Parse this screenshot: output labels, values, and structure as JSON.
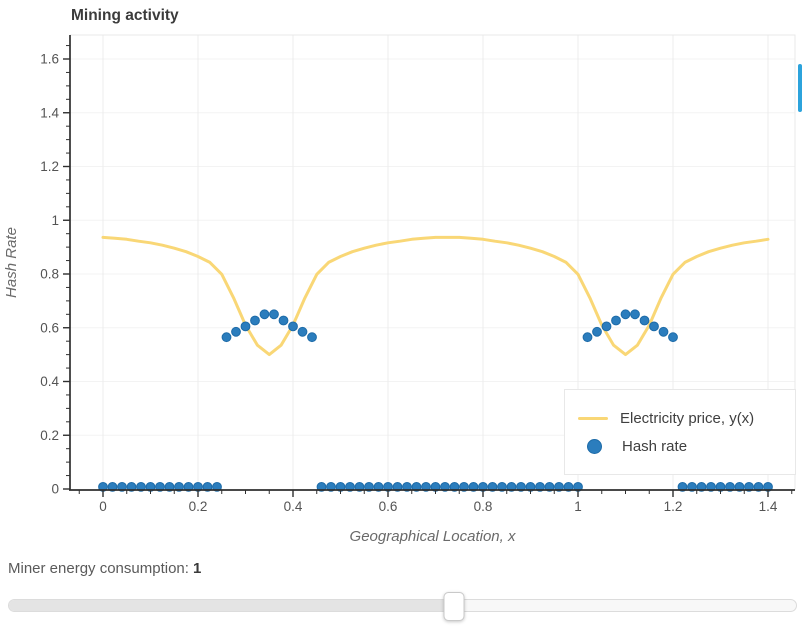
{
  "page": {
    "title": "Mining activity"
  },
  "chart_data": {
    "type": "line",
    "title": "Mining activity",
    "xlabel": "Geographical Location, x",
    "ylabel": "Hash Rate",
    "xlim": [
      -0.07,
      1.46
    ],
    "ylim": [
      0,
      1.69
    ],
    "grid": true,
    "legend_position": "bottom-right",
    "x_ticks": [
      0,
      0.2,
      0.4,
      0.6,
      0.8,
      1,
      1.2,
      1.4
    ],
    "x_tick_labels": [
      "0",
      "0.2",
      "0.4",
      "0.6",
      "0.8",
      "1",
      "1.2",
      "1.4"
    ],
    "y_ticks": [
      0,
      0.2,
      0.4,
      0.6,
      0.8,
      1,
      1.2,
      1.4,
      1.6
    ],
    "y_tick_labels": [
      "0",
      "0.2",
      "0.4",
      "0.6",
      "0.8",
      "1",
      "1.2",
      "1.4",
      "1.6"
    ],
    "minor_tick_step": 0.05,
    "series": [
      {
        "name": "Electricity price, y(x)",
        "kind": "line",
        "x": [
          0,
          0.025,
          0.05,
          0.075,
          0.1,
          0.125,
          0.15,
          0.175,
          0.2,
          0.225,
          0.25,
          0.275,
          0.3,
          0.325,
          0.35,
          0.375,
          0.4,
          0.425,
          0.45,
          0.475,
          0.5,
          0.525,
          0.55,
          0.575,
          0.6,
          0.625,
          0.65,
          0.675,
          0.7,
          0.725,
          0.75,
          0.775,
          0.8,
          0.825,
          0.85,
          0.875,
          0.9,
          0.925,
          0.95,
          0.975,
          1,
          1.025,
          1.05,
          1.075,
          1.1,
          1.125,
          1.15,
          1.175,
          1.2,
          1.225,
          1.25,
          1.275,
          1.3,
          1.325,
          1.35,
          1.375,
          1.4
        ],
        "y": [
          0.936,
          0.933,
          0.929,
          0.922,
          0.916,
          0.907,
          0.896,
          0.883,
          0.865,
          0.843,
          0.799,
          0.711,
          0.61,
          0.535,
          0.5,
          0.535,
          0.61,
          0.711,
          0.799,
          0.843,
          0.865,
          0.883,
          0.896,
          0.907,
          0.916,
          0.922,
          0.929,
          0.933,
          0.936,
          0.936,
          0.936,
          0.933,
          0.929,
          0.922,
          0.916,
          0.907,
          0.896,
          0.883,
          0.865,
          0.843,
          0.799,
          0.711,
          0.61,
          0.535,
          0.5,
          0.535,
          0.61,
          0.711,
          0.799,
          0.843,
          0.865,
          0.883,
          0.896,
          0.907,
          0.916,
          0.922,
          0.929
        ]
      },
      {
        "name": "Hash rate",
        "kind": "scatter",
        "x": [
          0,
          0.02,
          0.04,
          0.06,
          0.08,
          0.1,
          0.12,
          0.14,
          0.16,
          0.18,
          0.2,
          0.22,
          0.24,
          0.26,
          0.28,
          0.3,
          0.32,
          0.34,
          0.36,
          0.38,
          0.4,
          0.42,
          0.44,
          0.46,
          0.48,
          0.5,
          0.52,
          0.54,
          0.56,
          0.58,
          0.6,
          0.62,
          0.64,
          0.66,
          0.68,
          0.7,
          0.72,
          0.74,
          0.76,
          0.78,
          0.8,
          0.82,
          0.84,
          0.86,
          0.88,
          0.9,
          0.92,
          0.94,
          0.96,
          0.98,
          1,
          1.02,
          1.04,
          1.06,
          1.08,
          1.1,
          1.12,
          1.14,
          1.16,
          1.18,
          1.2,
          1.22,
          1.24,
          1.26,
          1.28,
          1.3,
          1.32,
          1.34,
          1.36,
          1.38,
          1.4
        ],
        "y": [
          0.008,
          0.008,
          0.008,
          0.008,
          0.008,
          0.008,
          0.008,
          0.008,
          0.008,
          0.008,
          0.008,
          0.008,
          0.008,
          0.565,
          0.585,
          0.605,
          0.627,
          0.65,
          0.65,
          0.627,
          0.605,
          0.585,
          0.565,
          0.008,
          0.008,
          0.008,
          0.008,
          0.008,
          0.008,
          0.008,
          0.008,
          0.008,
          0.008,
          0.008,
          0.008,
          0.008,
          0.008,
          0.008,
          0.008,
          0.008,
          0.008,
          0.008,
          0.008,
          0.008,
          0.008,
          0.008,
          0.008,
          0.008,
          0.008,
          0.008,
          0.008,
          0.565,
          0.585,
          0.605,
          0.627,
          0.65,
          0.65,
          0.627,
          0.605,
          0.585,
          0.565,
          0.008,
          0.008,
          0.008,
          0.008,
          0.008,
          0.008,
          0.008,
          0.008,
          0.008,
          0.008
        ]
      }
    ]
  },
  "legend": {
    "items": [
      {
        "label": "Electricity price, y(x)",
        "marker": "line"
      },
      {
        "label": "Hash rate",
        "marker": "dot"
      }
    ]
  },
  "slider": {
    "label": "Miner energy consumption:",
    "value": "1",
    "fraction": 0.566
  },
  "colors": {
    "line": "#F9D776",
    "marker": "#2B7DBD",
    "marker_edge": "#1D6BA8",
    "axis": "#2F2F2F",
    "tick_label": "#545454",
    "axis_title": "#6A6A6A",
    "grid_v": "#ECECEC",
    "grid_h": "#F3F3F3",
    "plot_border": "#E9E9E9",
    "title": "#3B3B3B",
    "legend_text": "#3F3F3F",
    "scrollbar": "#2CA3DC"
  }
}
